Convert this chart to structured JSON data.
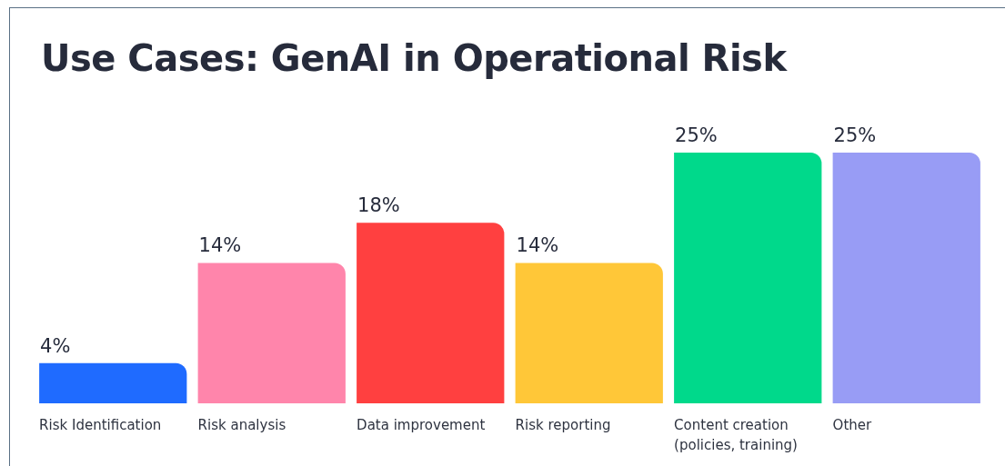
{
  "chart_data": {
    "type": "bar",
    "title": "Use Cases: GenAI in Operational Risk",
    "categories": [
      "Risk Identification",
      "Risk analysis",
      "Data improvement",
      "Risk reporting",
      "Content creation (policies, training)",
      "Other"
    ],
    "values": [
      4,
      14,
      18,
      14,
      25,
      25
    ],
    "colors": [
      "#1f6bff",
      "#ff85ab",
      "#ff4040",
      "#ffc738",
      "#00d98b",
      "#989cf5"
    ],
    "value_labels": [
      "4%",
      "14%",
      "18%",
      "14%",
      "25%",
      "25%"
    ],
    "tick_labels": "x",
    "grid": false,
    "legend": false
  }
}
